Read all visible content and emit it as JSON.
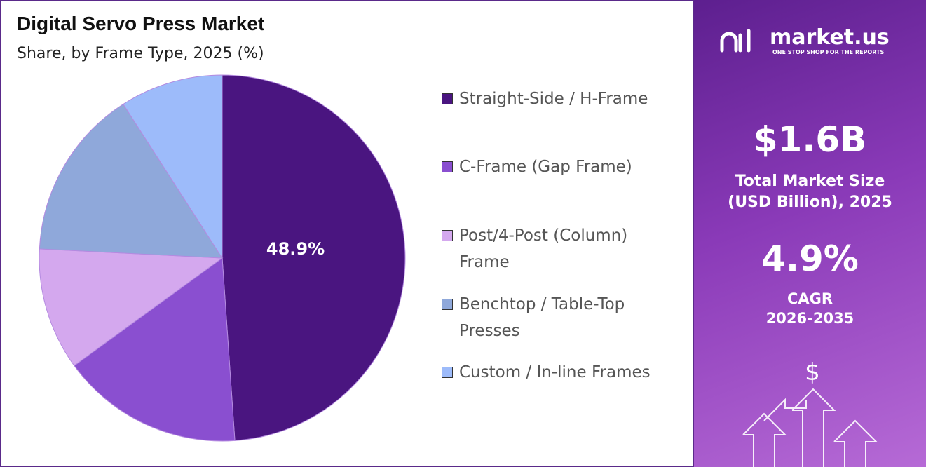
{
  "chart_data": {
    "type": "pie",
    "title": "Digital Servo Press Market",
    "subtitle": "Share, by Frame Type, 2025 (%)",
    "categories": [
      "Straight-Side / H-Frame",
      "C-Frame (Gap Frame)",
      "Post/4-Post (Column) Frame",
      "Benchtop / Table-Top Presses",
      "Custom / In-line Frames"
    ],
    "values": [
      48.9,
      16.1,
      10.8,
      15.1,
      9.1
    ],
    "value_labels": [
      "48.9%",
      null,
      null,
      null,
      null
    ],
    "colors": [
      "#4a1580",
      "#8a4fd0",
      "#d4a8ee",
      "#8fa8da",
      "#9dbbfa"
    ]
  },
  "side_panel": {
    "logo": "market.us",
    "tagline": "ONE STOP SHOP FOR THE REPORTS",
    "market_size": "$1.6B",
    "market_size_label": "Total Market Size (USD Billion), 2025",
    "cagr": "4.9%",
    "cagr_label": "CAGR",
    "cagr_period": "2026-2035"
  }
}
